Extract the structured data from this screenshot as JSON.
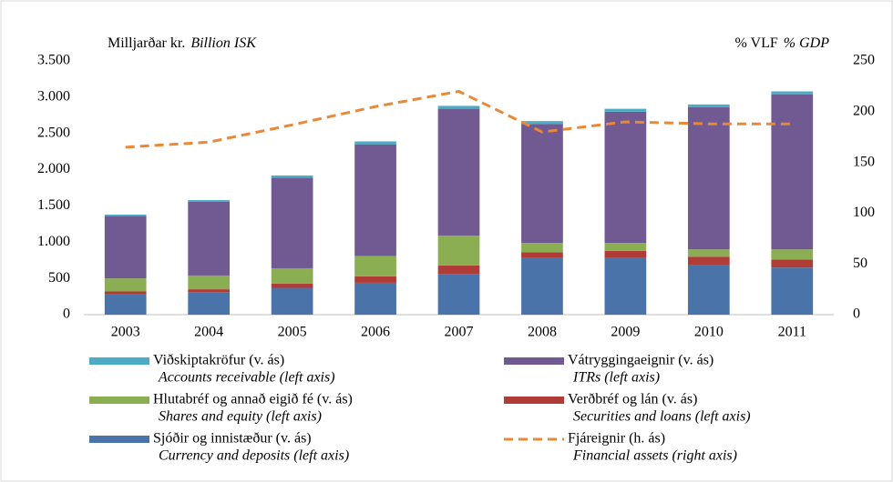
{
  "chart_data": {
    "type": "bar",
    "stacked": true,
    "ylabel": "Milljarðar kr.",
    "ylabel_en": "Billion ISK",
    "y2label": "% VLF",
    "y2label_en": "% GDP",
    "categories": [
      "2003",
      "2004",
      "2005",
      "2006",
      "2007",
      "2008",
      "2009",
      "2010",
      "2011"
    ],
    "series": [
      {
        "name": "Sjóðir og innistæður (v. ás)",
        "name_en": "Currency and deposits (left axis)",
        "color": "#4a74a9",
        "values": [
          280,
          310,
          370,
          440,
          560,
          780,
          790,
          680,
          650
        ]
      },
      {
        "name": "Verðbréf og lán (v. ás)",
        "name_en": "Securities and loans (left axis)",
        "color": "#b03c38",
        "values": [
          40,
          40,
          60,
          90,
          120,
          80,
          90,
          120,
          110
        ]
      },
      {
        "name": "Hlutabréf og annað eigið fé (v. ás)",
        "name_en": "Shares and equity (left axis)",
        "color": "#8cae52",
        "values": [
          180,
          190,
          210,
          280,
          410,
          130,
          110,
          100,
          140
        ]
      },
      {
        "name": "Vátryggingaeignir (v. ás)",
        "name_en": "ITRs (left axis)",
        "color": "#715a91",
        "values": [
          860,
          1020,
          1250,
          1540,
          1750,
          1640,
          1810,
          1960,
          2140
        ]
      },
      {
        "name": "Viðskiptakröfur (v. ás)",
        "name_en": "Accounts receivable (left axis)",
        "color": "#4aacc5",
        "values": [
          20,
          20,
          30,
          40,
          40,
          40,
          40,
          40,
          40
        ]
      },
      {
        "name": "Fjáreignir (h. ás)",
        "name_en": "Financial assets (right axis)",
        "color": "#e8893a",
        "type": "line",
        "dashed": true,
        "axis": "y2",
        "values": [
          165,
          170,
          187,
          205,
          220,
          180,
          190,
          188,
          188
        ]
      }
    ],
    "ylim": [
      0,
      3500
    ],
    "yticks": [
      0,
      500,
      {
        "value": 1000,
        "label": "1.000"
      },
      {
        "value": 1500,
        "label": "1.500"
      },
      {
        "value": 2000,
        "label": "2.000"
      },
      {
        "value": 2500,
        "label": "2.500"
      },
      {
        "value": 3000,
        "label": "3.000"
      },
      {
        "value": 3500,
        "label": "3.500"
      }
    ],
    "y2lim": [
      0,
      250
    ],
    "y2ticks": [
      0,
      50,
      100,
      150,
      200,
      250
    ],
    "grid": false
  }
}
